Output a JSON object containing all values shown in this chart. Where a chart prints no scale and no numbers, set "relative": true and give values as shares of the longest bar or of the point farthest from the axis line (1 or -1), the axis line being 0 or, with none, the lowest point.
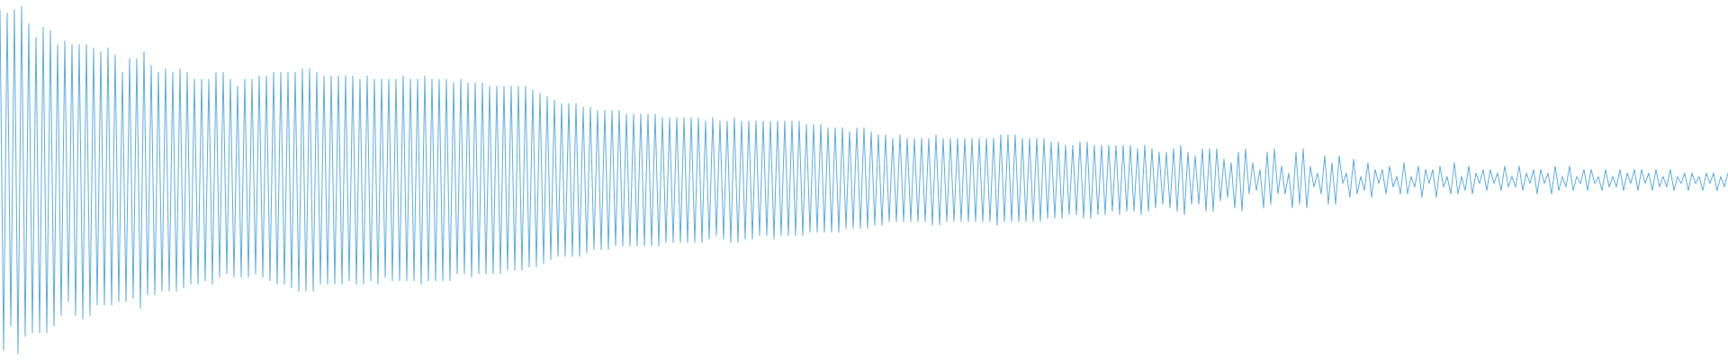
{
  "chart_data": {
    "type": "line",
    "relative": true,
    "categories": [
      null,
      null,
      null,
      null,
      null,
      null,
      null,
      null,
      null,
      null,
      null,
      null,
      null,
      null,
      null,
      null,
      null,
      null,
      null,
      null,
      null,
      null,
      null,
      null,
      null,
      null,
      null,
      null,
      null,
      null,
      null,
      null,
      null,
      null,
      null,
      null,
      null,
      null,
      null,
      null,
      null,
      null,
      null,
      null,
      null,
      null,
      null,
      null,
      null,
      null,
      null,
      null,
      null,
      null,
      null,
      null,
      null,
      null,
      null,
      null,
      null,
      null,
      null,
      null,
      null,
      null,
      null,
      null,
      null,
      null,
      null,
      null,
      null,
      null,
      null,
      null,
      null,
      null,
      null,
      null,
      null,
      null,
      null,
      null,
      null,
      null,
      null,
      null,
      null,
      null,
      null,
      null,
      null,
      null,
      null,
      null,
      null,
      null,
      null,
      null,
      null,
      null,
      null,
      null,
      null,
      null,
      null,
      null,
      null,
      null,
      null,
      null,
      null,
      null,
      null,
      null,
      null,
      null,
      null,
      null,
      null,
      null,
      null,
      null,
      null,
      null,
      null,
      null,
      null,
      null,
      null,
      null,
      null,
      null,
      null,
      null,
      null,
      null,
      null,
      null,
      null,
      null,
      null,
      null,
      null,
      null,
      null,
      null,
      null,
      null,
      null,
      null,
      null,
      null,
      null,
      null,
      null,
      null,
      null,
      null,
      null,
      null,
      null,
      null,
      null,
      null,
      null,
      null,
      null,
      null,
      null,
      null,
      null,
      null,
      null,
      null,
      null,
      null,
      null,
      null,
      null,
      null,
      null,
      null,
      null,
      null,
      null,
      null,
      null,
      null,
      null,
      null,
      null,
      null,
      null,
      null,
      null,
      null,
      null,
      null,
      null,
      null,
      null,
      null,
      null,
      null,
      null,
      null,
      null,
      null,
      null,
      null,
      null,
      null,
      null,
      null,
      null,
      null,
      null,
      null,
      null,
      null,
      null,
      null,
      null,
      null,
      null,
      null,
      null,
      null,
      null,
      null,
      null,
      null,
      null,
      null,
      null,
      null,
      null,
      null,
      null,
      null,
      null,
      null,
      null,
      null,
      null,
      null,
      null,
      null,
      null,
      null,
      null,
      null,
      null,
      null,
      null,
      null,
      null,
      null,
      null,
      null,
      null,
      null,
      null,
      null,
      null,
      null,
      null,
      null,
      null,
      null,
      null,
      null,
      null,
      null,
      null,
      null,
      null,
      null,
      null,
      null,
      null,
      null,
      null,
      null,
      null,
      null,
      null,
      null,
      null,
      null,
      null,
      null,
      null,
      null,
      null,
      null,
      null,
      null,
      null,
      null,
      null,
      null,
      null,
      null,
      null,
      null,
      null,
      null,
      null,
      null,
      null,
      null,
      null,
      null,
      null,
      null,
      null,
      null,
      null,
      null,
      null,
      null,
      null,
      null,
      null,
      null,
      null,
      null,
      null,
      null,
      null,
      null,
      null,
      null,
      null,
      null,
      null,
      null,
      null,
      null,
      null,
      null,
      null,
      null,
      null,
      null,
      null,
      null,
      null,
      null,
      null,
      null,
      null,
      null,
      null,
      null,
      null,
      null,
      null,
      null,
      null,
      null,
      null,
      null,
      null,
      null,
      null,
      null,
      null,
      null,
      null,
      null,
      null,
      null,
      null,
      null,
      null,
      null,
      null,
      null,
      null,
      null,
      null,
      null,
      null,
      null,
      null,
      null,
      null,
      null,
      null,
      null,
      null,
      null,
      null,
      null,
      null,
      null,
      null,
      null,
      null,
      null,
      null,
      null,
      null,
      null,
      null,
      null,
      null,
      null,
      null,
      null,
      null,
      null,
      null,
      null,
      null,
      null,
      null,
      null,
      null,
      null,
      null,
      null,
      null,
      null,
      null,
      null,
      null,
      null,
      null,
      null,
      null,
      null,
      null,
      null,
      null,
      null,
      null,
      null,
      null,
      null,
      null,
      null,
      null,
      null,
      null,
      null,
      null,
      null,
      null,
      null,
      null,
      null,
      null,
      null,
      null,
      null,
      null,
      null,
      null,
      null,
      null,
      null,
      null,
      null,
      null,
      null,
      null,
      null,
      null,
      null,
      null,
      null,
      null,
      null,
      null,
      null,
      null
    ],
    "series": [
      {
        "color": "#5dade2",
        "values": [
          0.99,
          0.01,
          0.98,
          0.08,
          0.99,
          0.0,
          1.0,
          0.05,
          0.95,
          0.06,
          0.91,
          0.06,
          0.94,
          0.06,
          0.93,
          0.08,
          0.89,
          0.11,
          0.9,
          0.15,
          0.89,
          0.11,
          0.89,
          0.1,
          0.89,
          0.11,
          0.88,
          0.14,
          0.87,
          0.14,
          0.88,
          0.14,
          0.86,
          0.15,
          0.81,
          0.15,
          0.85,
          0.16,
          0.85,
          0.13,
          0.87,
          0.17,
          0.83,
          0.17,
          0.81,
          0.18,
          0.82,
          0.18,
          0.81,
          0.18,
          0.82,
          0.19,
          0.81,
          0.2,
          0.79,
          0.2,
          0.79,
          0.21,
          0.79,
          0.2,
          0.81,
          0.22,
          0.81,
          0.23,
          0.79,
          0.22,
          0.77,
          0.22,
          0.79,
          0.22,
          0.79,
          0.23,
          0.8,
          0.22,
          0.8,
          0.21,
          0.81,
          0.2,
          0.81,
          0.2,
          0.81,
          0.19,
          0.81,
          0.18,
          0.82,
          0.18,
          0.82,
          0.18,
          0.81,
          0.2,
          0.8,
          0.2,
          0.8,
          0.2,
          0.8,
          0.2,
          0.8,
          0.21,
          0.8,
          0.2,
          0.79,
          0.2,
          0.8,
          0.21,
          0.79,
          0.2,
          0.79,
          0.22,
          0.79,
          0.21,
          0.79,
          0.21,
          0.8,
          0.21,
          0.79,
          0.21,
          0.79,
          0.2,
          0.8,
          0.21,
          0.79,
          0.21,
          0.79,
          0.21,
          0.79,
          0.21,
          0.78,
          0.23,
          0.79,
          0.23,
          0.78,
          0.22,
          0.78,
          0.23,
          0.78,
          0.23,
          0.77,
          0.23,
          0.77,
          0.23,
          0.77,
          0.24,
          0.77,
          0.24,
          0.77,
          0.24,
          0.77,
          0.25,
          0.76,
          0.25,
          0.75,
          0.26,
          0.74,
          0.27,
          0.73,
          0.28,
          0.72,
          0.28,
          0.72,
          0.28,
          0.72,
          0.28,
          0.71,
          0.29,
          0.71,
          0.3,
          0.7,
          0.3,
          0.7,
          0.3,
          0.7,
          0.31,
          0.7,
          0.31,
          0.69,
          0.31,
          0.69,
          0.31,
          0.69,
          0.31,
          0.69,
          0.31,
          0.69,
          0.31,
          0.68,
          0.32,
          0.68,
          0.32,
          0.68,
          0.32,
          0.68,
          0.32,
          0.68,
          0.32,
          0.68,
          0.32,
          0.67,
          0.33,
          0.68,
          0.34,
          0.67,
          0.33,
          0.67,
          0.32,
          0.68,
          0.32,
          0.67,
          0.33,
          0.67,
          0.33,
          0.67,
          0.34,
          0.67,
          0.34,
          0.67,
          0.33,
          0.67,
          0.34,
          0.67,
          0.34,
          0.67,
          0.34,
          0.67,
          0.34,
          0.66,
          0.35,
          0.66,
          0.35,
          0.66,
          0.35,
          0.65,
          0.35,
          0.65,
          0.35,
          0.65,
          0.36,
          0.64,
          0.36,
          0.65,
          0.36,
          0.65,
          0.36,
          0.64,
          0.37,
          0.63,
          0.37,
          0.63,
          0.38,
          0.62,
          0.38,
          0.63,
          0.38,
          0.62,
          0.38,
          0.62,
          0.38,
          0.62,
          0.38,
          0.62,
          0.37,
          0.63,
          0.37,
          0.62,
          0.38,
          0.62,
          0.38,
          0.62,
          0.38,
          0.62,
          0.38,
          0.62,
          0.38,
          0.62,
          0.38,
          0.62,
          0.38,
          0.62,
          0.37,
          0.63,
          0.38,
          0.63,
          0.38,
          0.63,
          0.38,
          0.62,
          0.38,
          0.62,
          0.38,
          0.62,
          0.38,
          0.62,
          0.39,
          0.61,
          0.39,
          0.61,
          0.39,
          0.6,
          0.4,
          0.6,
          0.4,
          0.61,
          0.39,
          0.61,
          0.39,
          0.6,
          0.4,
          0.6,
          0.4,
          0.6,
          0.41,
          0.6,
          0.4,
          0.6,
          0.41,
          0.6,
          0.41,
          0.59,
          0.4,
          0.6,
          0.41,
          0.59,
          0.42,
          0.58,
          0.43,
          0.58,
          0.42,
          0.59,
          0.41,
          0.6,
          0.4,
          0.58,
          0.43,
          0.57,
          0.43,
          0.59,
          0.41,
          0.59,
          0.41,
          0.59,
          0.44,
          0.56,
          0.45,
          0.55,
          0.42,
          0.58,
          0.41,
          0.59,
          0.46,
          0.55,
          0.47,
          0.53,
          0.42,
          0.58,
          0.43,
          0.59,
          0.46,
          0.54,
          0.46,
          0.52,
          0.42,
          0.58,
          0.43,
          0.59,
          0.42,
          0.54,
          0.48,
          0.52,
          0.46,
          0.57,
          0.43,
          0.55,
          0.43,
          0.57,
          0.49,
          0.52,
          0.45,
          0.56,
          0.46,
          0.51,
          0.47,
          0.55,
          0.45,
          0.53,
          0.49,
          0.53,
          0.46,
          0.54,
          0.48,
          0.51,
          0.46,
          0.55,
          0.46,
          0.51,
          0.48,
          0.54,
          0.45,
          0.53,
          0.49,
          0.53,
          0.45,
          0.54,
          0.48,
          0.51,
          0.46,
          0.55,
          0.46,
          0.51,
          0.47,
          0.54,
          0.46,
          0.52,
          0.49,
          0.53,
          0.47,
          0.53,
          0.49,
          0.52,
          0.47,
          0.54,
          0.48,
          0.51,
          0.48,
          0.54,
          0.47,
          0.52,
          0.49,
          0.53,
          0.46,
          0.53,
          0.49,
          0.52,
          0.46,
          0.54,
          0.47,
          0.51,
          0.48,
          0.54,
          0.47,
          0.51,
          0.49,
          0.53,
          0.47,
          0.53,
          0.49,
          0.51,
          0.47,
          0.53,
          0.48,
          0.51,
          0.48,
          0.53,
          0.47,
          0.52,
          0.49,
          0.53,
          0.47,
          0.53,
          0.49,
          0.52,
          0.47,
          0.53,
          0.48,
          0.51,
          0.48,
          0.53,
          0.47,
          0.51,
          0.49,
          0.52,
          0.47,
          0.52,
          0.49,
          0.51,
          0.47,
          0.52,
          0.49,
          0.52,
          0.47,
          0.51,
          0.48,
          0.52
        ]
      }
    ]
  }
}
